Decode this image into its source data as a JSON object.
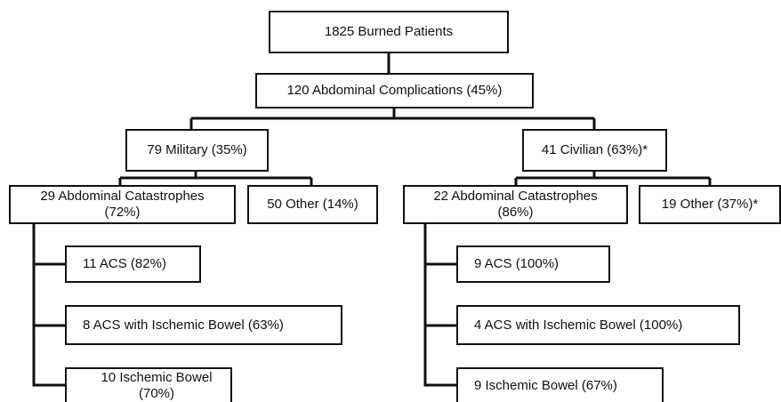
{
  "nodes": [
    {
      "label": "1825 Burned Patients"
    },
    {
      "label": "120 Abdominal Complications (45%)"
    },
    {
      "label": "79 Military (35%)"
    },
    {
      "label": "41 Civilian (63%)*"
    },
    {
      "label_lines": [
        "29 Abdominal Catastrophes",
        "(72%)"
      ]
    },
    {
      "label": "50 Other (14%)"
    },
    {
      "label_lines": [
        "22 Abdominal Catastrophes",
        "(86%)"
      ]
    },
    {
      "label": "19 Other (37%)*"
    },
    {
      "label": "11 ACS (82%)"
    },
    {
      "label": "8 ACS with Ischemic Bowel (63%)"
    },
    {
      "label": "10 Ischemic Bowel (70%)"
    },
    {
      "label": "9 ACS (100%)"
    },
    {
      "label": "4 ACS with Ischemic Bowel (100%)"
    },
    {
      "label": "9 Ischemic Bowel (67%)"
    }
  ]
}
